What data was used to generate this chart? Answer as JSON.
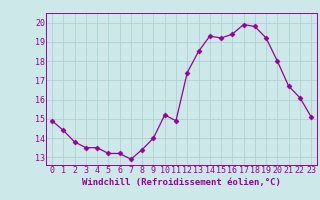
{
  "x": [
    0,
    1,
    2,
    3,
    4,
    5,
    6,
    7,
    8,
    9,
    10,
    11,
    12,
    13,
    14,
    15,
    16,
    17,
    18,
    19,
    20,
    21,
    22,
    23
  ],
  "y": [
    14.9,
    14.4,
    13.8,
    13.5,
    13.5,
    13.2,
    13.2,
    12.9,
    13.4,
    14.0,
    15.2,
    14.9,
    17.4,
    18.5,
    19.3,
    19.2,
    19.4,
    19.9,
    19.8,
    19.2,
    18.0,
    16.7,
    16.1,
    15.1
  ],
  "line_color": "#990099",
  "marker": "D",
  "markersize": 2.5,
  "linewidth": 0.9,
  "xlabel": "Windchill (Refroidissement éolien,°C)",
  "xlabel_fontsize": 6.5,
  "xlabel_color": "#990099",
  "ylabel_ticks": [
    13,
    14,
    15,
    16,
    17,
    18,
    19,
    20
  ],
  "xtick_labels": [
    "0",
    "1",
    "2",
    "3",
    "4",
    "5",
    "6",
    "7",
    "8",
    "9",
    "10",
    "11",
    "12",
    "13",
    "14",
    "15",
    "16",
    "17",
    "18",
    "19",
    "20",
    "21",
    "22",
    "23"
  ],
  "ylim": [
    12.6,
    20.5
  ],
  "xlim": [
    -0.5,
    23.5
  ],
  "bg_color": "#cce8e8",
  "grid_color": "#aacece",
  "tick_fontsize": 6,
  "ylabel_fontsize": 6
}
